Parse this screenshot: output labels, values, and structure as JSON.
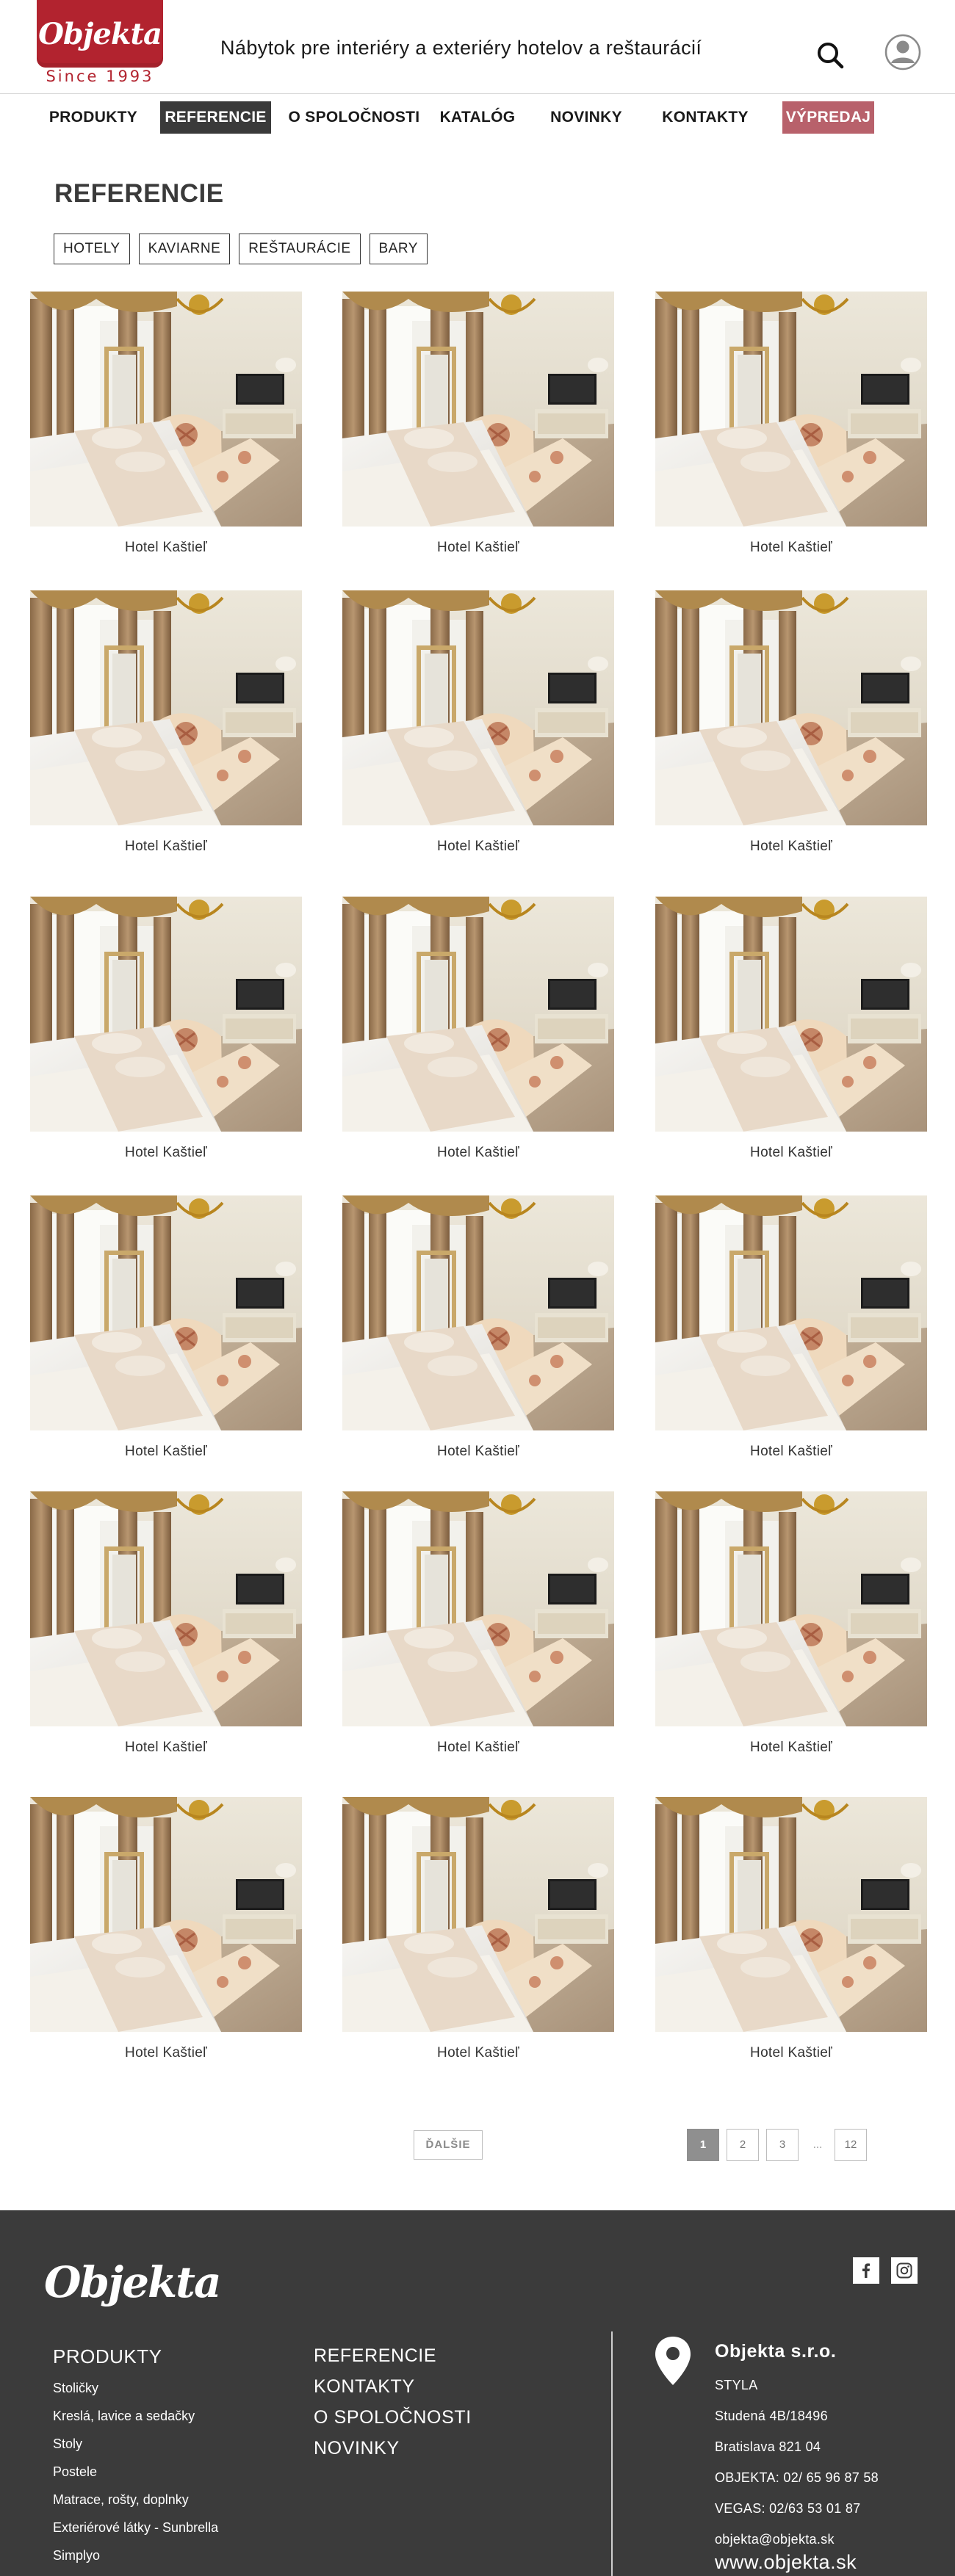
{
  "header": {
    "logo_text": "Objekta",
    "logo_since": "Since 1993",
    "tagline": "Nábytok pre interiéry a exteriéry hotelov a reštaurácií",
    "brand_color": "#b2232f",
    "search_icon": "search-icon",
    "user_icon": "user-icon"
  },
  "nav": {
    "items": [
      {
        "label": "PRODUKTY"
      },
      {
        "label": "REFERENCIE",
        "active": true
      },
      {
        "label": "O SPOLOČNOSTI"
      },
      {
        "label": "KATALÓG"
      },
      {
        "label": "NOVINKY"
      },
      {
        "label": "KONTAKTY"
      },
      {
        "label": "VÝPREDAJ",
        "highlight": true
      }
    ],
    "active_color": "#3a3a3a",
    "sale_color": "#b8616b"
  },
  "page": {
    "title": "REFERENCIE",
    "filters": [
      {
        "label": "HOTELY"
      },
      {
        "label": "KAVIARNE"
      },
      {
        "label": "REŠTAURÁCIE"
      },
      {
        "label": "BARY"
      }
    ]
  },
  "references": [
    {
      "caption": "Hotel Kaštieľ"
    },
    {
      "caption": "Hotel Kaštieľ"
    },
    {
      "caption": "Hotel Kaštieľ"
    },
    {
      "caption": "Hotel Kaštieľ"
    },
    {
      "caption": "Hotel Kaštieľ"
    },
    {
      "caption": "Hotel Kaštieľ"
    },
    {
      "caption": "Hotel Kaštieľ"
    },
    {
      "caption": "Hotel Kaštieľ"
    },
    {
      "caption": "Hotel Kaštieľ"
    },
    {
      "caption": "Hotel Kaštieľ"
    },
    {
      "caption": "Hotel Kaštieľ"
    },
    {
      "caption": "Hotel Kaštieľ"
    },
    {
      "caption": "Hotel Kaštieľ"
    },
    {
      "caption": "Hotel Kaštieľ"
    },
    {
      "caption": "Hotel Kaštieľ"
    },
    {
      "caption": "Hotel Kaštieľ"
    },
    {
      "caption": "Hotel Kaštieľ"
    },
    {
      "caption": "Hotel Kaštieľ"
    }
  ],
  "pagination": {
    "next_label": "ĎALŠIE",
    "pages": [
      "1",
      "2",
      "3"
    ],
    "current": "1",
    "ellipsis": "...",
    "last": "12"
  },
  "footer": {
    "logo_text": "Objekta",
    "social": [
      {
        "icon": "facebook-icon"
      },
      {
        "icon": "instagram-icon"
      }
    ],
    "products_title": "PRODUKTY",
    "products": [
      "Stoličky",
      "Kreslá, lavice a sedačky",
      "Stoly",
      "Postele",
      "Matrace, rošty, doplnky",
      "Exteriérové látky - Sunbrella",
      "Simplyo"
    ],
    "links": [
      "REFERENCIE",
      "KONTAKTY",
      "O SPOLOČNOSTI",
      "NOVINKY"
    ],
    "company": "Objekta s.r.o.",
    "address": [
      "STYLA",
      "Studená 4B/18496",
      "Bratislava 821 04"
    ],
    "phones": [
      "OBJEKTA: 02/ 65 96 87 58",
      "VEGAS: 02/63 53 01 87"
    ],
    "email": "objekta@objekta.sk",
    "web": "www.objekta.sk",
    "background": "#3b3b3b"
  }
}
